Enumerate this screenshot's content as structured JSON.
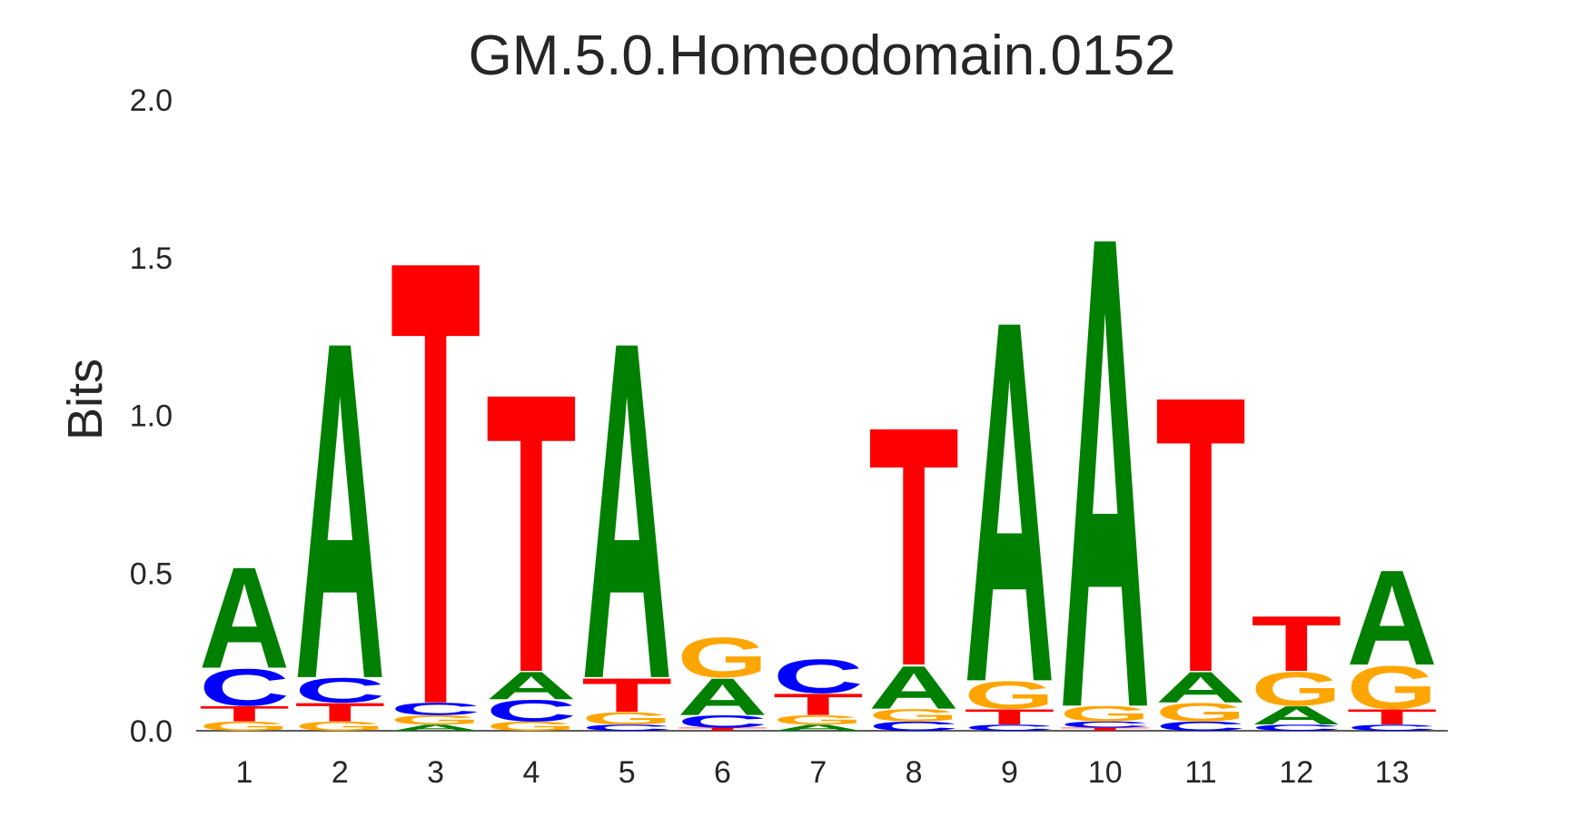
{
  "chart_data": {
    "type": "sequence-logo",
    "title": "GM.5.0.Homeodomain.0152",
    "xlabel": "",
    "ylabel": "Bits",
    "ylim": [
      0,
      2.0
    ],
    "yticks": [
      "0.0",
      "0.5",
      "1.0",
      "1.5",
      "2.0"
    ],
    "grid": false,
    "colors": {
      "A": "#008000",
      "C": "#0000ff",
      "G": "#ffa500",
      "T": "#ff0000"
    },
    "positions": [
      {
        "label": "1",
        "stack": [
          [
            "G",
            0.03
          ],
          [
            "T",
            0.05
          ],
          [
            "C",
            0.12
          ],
          [
            "A",
            0.33
          ]
        ]
      },
      {
        "label": "2",
        "stack": [
          [
            "G",
            0.03
          ],
          [
            "T",
            0.06
          ],
          [
            "C",
            0.08
          ],
          [
            "A",
            1.1
          ]
        ]
      },
      {
        "label": "3",
        "stack": [
          [
            "A",
            0.02
          ],
          [
            "G",
            0.03
          ],
          [
            "C",
            0.04
          ],
          [
            "T",
            1.45
          ]
        ]
      },
      {
        "label": "4",
        "stack": [
          [
            "G",
            0.03
          ],
          [
            "C",
            0.07
          ],
          [
            "A",
            0.09
          ],
          [
            "T",
            0.91
          ]
        ]
      },
      {
        "label": "5",
        "stack": [
          [
            "C",
            0.02
          ],
          [
            "G",
            0.04
          ],
          [
            "T",
            0.11
          ],
          [
            "A",
            1.1
          ]
        ]
      },
      {
        "label": "6",
        "stack": [
          [
            "T",
            0.01
          ],
          [
            "C",
            0.04
          ],
          [
            "A",
            0.12
          ],
          [
            "G",
            0.13
          ]
        ]
      },
      {
        "label": "7",
        "stack": [
          [
            "A",
            0.02
          ],
          [
            "G",
            0.03
          ],
          [
            "T",
            0.07
          ],
          [
            "C",
            0.11
          ]
        ]
      },
      {
        "label": "8",
        "stack": [
          [
            "C",
            0.03
          ],
          [
            "G",
            0.04
          ],
          [
            "A",
            0.14
          ],
          [
            "T",
            0.78
          ]
        ]
      },
      {
        "label": "9",
        "stack": [
          [
            "C",
            0.02
          ],
          [
            "T",
            0.05
          ],
          [
            "G",
            0.09
          ],
          [
            "A",
            1.18
          ]
        ]
      },
      {
        "label": "10",
        "stack": [
          [
            "T",
            0.01
          ],
          [
            "C",
            0.02
          ],
          [
            "G",
            0.05
          ],
          [
            "A",
            1.54
          ]
        ]
      },
      {
        "label": "11",
        "stack": [
          [
            "C",
            0.03
          ],
          [
            "G",
            0.06
          ],
          [
            "A",
            0.1
          ],
          [
            "T",
            0.9
          ]
        ]
      },
      {
        "label": "12",
        "stack": [
          [
            "C",
            0.02
          ],
          [
            "A",
            0.06
          ],
          [
            "G",
            0.11
          ],
          [
            "T",
            0.18
          ]
        ]
      },
      {
        "label": "13",
        "stack": [
          [
            "C",
            0.02
          ],
          [
            "T",
            0.05
          ],
          [
            "G",
            0.14
          ],
          [
            "A",
            0.31
          ]
        ]
      }
    ]
  }
}
